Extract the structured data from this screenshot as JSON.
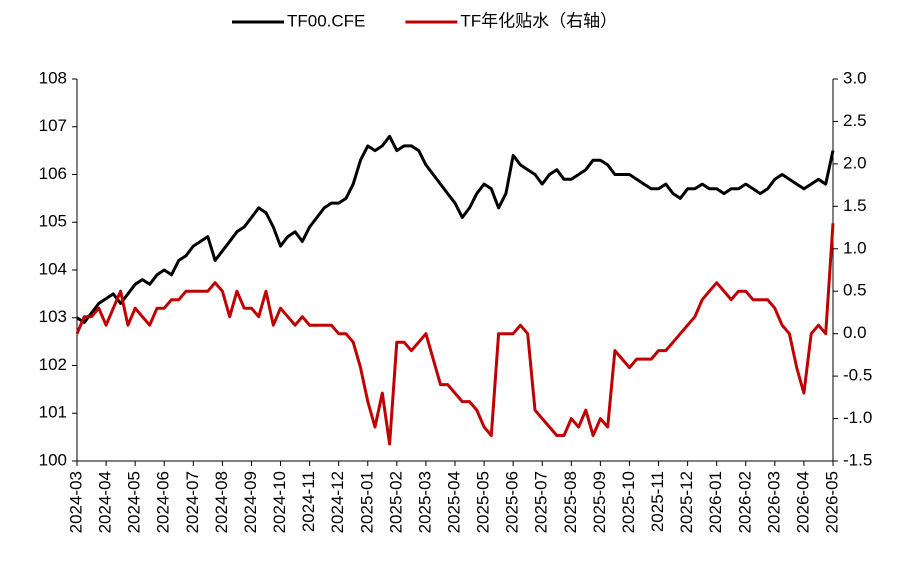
{
  "chart_data": {
    "type": "line",
    "x": [
      "2024-03",
      null,
      null,
      null,
      "2024-04",
      null,
      null,
      null,
      "2024-05",
      null,
      null,
      null,
      "2024-06",
      null,
      null,
      null,
      "2024-07",
      null,
      null,
      null,
      "2024-08",
      null,
      null,
      null,
      "2024-09",
      null,
      null,
      null,
      "2024-10",
      null,
      null,
      null,
      "2024-11",
      null,
      null,
      null,
      "2024-12",
      null,
      null,
      null,
      "2025-01",
      null,
      null,
      null,
      "2025-02",
      null,
      null,
      null,
      "2025-03",
      null,
      null,
      null,
      "2025-04",
      null,
      null,
      null,
      "2025-05",
      null,
      null,
      null,
      "2025-06",
      null,
      null,
      null,
      "2025-07",
      null,
      null,
      null,
      "2025-08",
      null,
      null,
      null,
      "2025-09",
      null,
      null,
      null,
      "2025-10",
      null,
      null,
      null,
      "2025-11",
      null,
      null,
      null,
      "2025-12",
      null,
      null,
      null,
      "2026-01",
      null,
      null,
      null,
      "2026-02",
      null,
      null,
      null,
      "2026-03",
      null,
      null,
      null,
      "2026-04",
      null,
      null,
      null,
      "2026-05"
    ],
    "series": [
      {
        "name": "TF00.CFE",
        "color": "#000000",
        "values": [
          103.0,
          102.9,
          103.1,
          103.3,
          103.4,
          103.5,
          103.3,
          103.5,
          103.7,
          103.8,
          103.7,
          103.9,
          104.0,
          103.9,
          104.2,
          104.3,
          104.5,
          104.6,
          104.7,
          104.2,
          104.4,
          104.6,
          104.8,
          104.9,
          105.1,
          105.3,
          105.2,
          104.9,
          104.5,
          104.7,
          104.8,
          104.6,
          104.9,
          105.1,
          105.3,
          105.4,
          105.4,
          105.5,
          105.8,
          106.3,
          106.6,
          106.5,
          106.6,
          106.8,
          106.5,
          106.6,
          106.6,
          106.5,
          106.2,
          106.0,
          105.8,
          105.6,
          105.4,
          105.1,
          105.3,
          105.6,
          105.8,
          105.7,
          105.3,
          105.6,
          106.4,
          106.2,
          106.1,
          106.0,
          105.8,
          106.0,
          106.1,
          105.9,
          105.9,
          106.0,
          106.1,
          106.3,
          106.3,
          106.2,
          106.0,
          106.0,
          106.0,
          105.9,
          105.8,
          105.7,
          105.7,
          105.8,
          105.6,
          105.5,
          105.7,
          105.7,
          105.8,
          105.7,
          105.7,
          105.6,
          105.7,
          105.7,
          105.8,
          105.7,
          105.6,
          105.7,
          105.9,
          106.0,
          105.9,
          105.8,
          105.7,
          105.8,
          105.9,
          105.8,
          106.5
        ]
      },
      {
        "name": "TF年化贴水（右轴）",
        "color": "#c00000",
        "axis": "y2",
        "values": [
          0.0,
          0.2,
          0.2,
          0.3,
          0.1,
          0.3,
          0.5,
          0.1,
          0.3,
          0.2,
          0.1,
          0.3,
          0.3,
          0.4,
          0.4,
          0.5,
          0.5,
          0.5,
          0.5,
          0.6,
          0.5,
          0.2,
          0.5,
          0.3,
          0.3,
          0.2,
          0.5,
          0.1,
          0.3,
          0.2,
          0.1,
          0.2,
          0.1,
          0.1,
          0.1,
          0.1,
          0.0,
          0.0,
          -0.1,
          -0.4,
          -0.8,
          -1.1,
          -0.7,
          -1.3,
          -0.1,
          -0.1,
          -0.2,
          -0.1,
          0.0,
          -0.3,
          -0.6,
          -0.6,
          -0.7,
          -0.8,
          -0.8,
          -0.9,
          -1.1,
          -1.2,
          0.0,
          0.0,
          0.0,
          0.1,
          0.0,
          -0.9,
          -1.0,
          -1.1,
          -1.2,
          -1.2,
          -1.0,
          -1.1,
          -0.9,
          -1.2,
          -1.0,
          -1.1,
          -0.2,
          -0.3,
          -0.4,
          -0.3,
          -0.3,
          -0.3,
          -0.2,
          -0.2,
          -0.1,
          0.0,
          0.1,
          0.2,
          0.4,
          0.5,
          0.6,
          0.5,
          0.4,
          0.5,
          0.5,
          0.4,
          0.4,
          0.4,
          0.3,
          0.1,
          0.0,
          -0.4,
          -0.7,
          0.0,
          0.1,
          0.0,
          1.3
        ]
      }
    ],
    "ylim": [
      100,
      108
    ],
    "yticks": [
      100,
      101,
      102,
      103,
      104,
      105,
      106,
      107,
      108
    ],
    "y2lim": [
      -1.5,
      3.0
    ],
    "y2ticks": [
      -1.5,
      {
        "value": -1.0,
        "label": "-1.0"
      },
      -0.5,
      {
        "value": 0.0,
        "label": "0.0"
      },
      0.5,
      {
        "value": 1.0,
        "label": "1.0"
      },
      1.5,
      {
        "value": 2.0,
        "label": "2.0"
      },
      2.5,
      {
        "value": 3.0,
        "label": "3.0"
      }
    ],
    "grid": false,
    "legend": "top"
  }
}
